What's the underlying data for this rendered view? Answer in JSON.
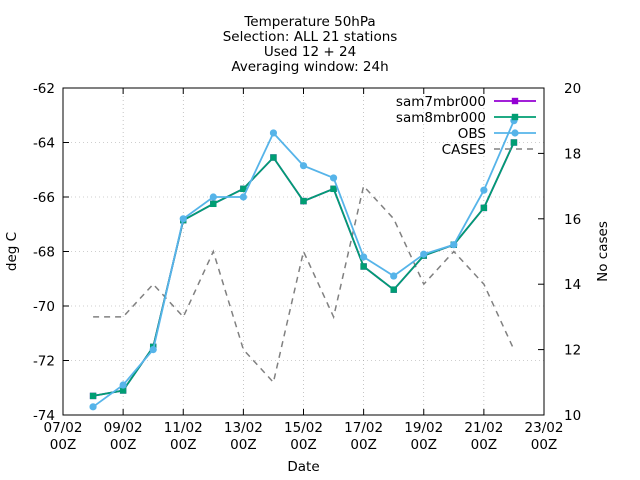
{
  "chart_data": {
    "type": "line",
    "title_lines": [
      "Temperature 50hPa",
      "Selection: ALL     21 stations",
      "Used 12 + 24",
      "Averaging window: 24h"
    ],
    "xlabel": "Date",
    "ylabel": "deg C",
    "y2label": "No cases",
    "x_ticks": [
      {
        "day": 7,
        "line1": "07/02",
        "line2": "00Z"
      },
      {
        "day": 9,
        "line1": "09/02",
        "line2": "00Z"
      },
      {
        "day": 11,
        "line1": "11/02",
        "line2": "00Z"
      },
      {
        "day": 13,
        "line1": "13/02",
        "line2": "00Z"
      },
      {
        "day": 15,
        "line1": "15/02",
        "line2": "00Z"
      },
      {
        "day": 17,
        "line1": "17/02",
        "line2": "00Z"
      },
      {
        "day": 19,
        "line1": "19/02",
        "line2": "00Z"
      },
      {
        "day": 21,
        "line1": "21/02",
        "line2": "00Z"
      },
      {
        "day": 23,
        "line1": "23/02",
        "line2": "00Z"
      }
    ],
    "xlim": [
      7,
      23
    ],
    "ylim": [
      -74,
      -62
    ],
    "y_ticks": [
      -74,
      -72,
      -70,
      -68,
      -66,
      -64,
      -62
    ],
    "y2lim": [
      10,
      20
    ],
    "y2_ticks": [
      10,
      12,
      14,
      16,
      18,
      20
    ],
    "x": [
      8,
      9,
      10,
      11,
      12,
      13,
      14,
      15,
      16,
      17,
      18,
      19,
      20,
      21,
      22
    ],
    "legend_position": "top-right",
    "series": [
      {
        "name": "sam7mbr000",
        "color": "#9400d3",
        "axis": "y",
        "marker": "square",
        "values": [
          -73.3,
          -73.1,
          -71.5,
          -66.85,
          -66.25,
          -65.7,
          -64.55,
          -66.15,
          -65.7,
          -68.55,
          -69.4,
          -68.15,
          -67.75,
          -66.4,
          -64.0
        ]
      },
      {
        "name": "sam8mbr000",
        "color": "#009e73",
        "axis": "y",
        "marker": "square",
        "values": [
          -73.3,
          -73.1,
          -71.5,
          -66.85,
          -66.25,
          -65.7,
          -64.55,
          -66.15,
          -65.7,
          -68.55,
          -69.4,
          -68.15,
          -67.75,
          -66.4,
          -64.0
        ]
      },
      {
        "name": "OBS",
        "color": "#56b4e9",
        "axis": "y",
        "marker": "circle",
        "values": [
          -73.7,
          -72.9,
          -71.6,
          -66.8,
          -66.0,
          -66.0,
          -63.65,
          -64.85,
          -65.3,
          -68.2,
          -68.9,
          -68.1,
          -67.75,
          -65.75,
          -63.2
        ]
      },
      {
        "name": "CASES",
        "color": "#808080",
        "axis": "y2",
        "dashed": true,
        "marker": "none",
        "values": [
          13,
          13,
          14,
          13,
          15,
          12,
          11,
          15,
          13,
          17,
          16,
          14,
          15,
          14,
          12
        ]
      }
    ]
  }
}
